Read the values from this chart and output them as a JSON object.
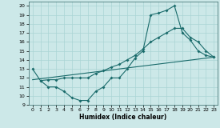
{
  "xlabel": "Humidex (Indice chaleur)",
  "bg_color": "#cce8e8",
  "line_color": "#1a6b6b",
  "grid_color": "#aad4d4",
  "xlim": [
    -0.5,
    23.5
  ],
  "ylim": [
    9,
    20.5
  ],
  "xticks": [
    0,
    1,
    2,
    3,
    4,
    5,
    6,
    7,
    8,
    9,
    10,
    11,
    12,
    13,
    14,
    15,
    16,
    17,
    18,
    19,
    20,
    21,
    22,
    23
  ],
  "yticks": [
    9,
    10,
    11,
    12,
    13,
    14,
    15,
    16,
    17,
    18,
    19,
    20
  ],
  "line1_x": [
    0,
    1,
    2,
    3,
    4,
    5,
    6,
    7,
    8,
    9,
    10,
    11,
    12,
    13,
    14,
    15,
    16,
    17,
    18,
    19,
    20,
    21,
    22,
    23
  ],
  "line1_y": [
    13.0,
    11.7,
    11.0,
    11.0,
    10.5,
    9.8,
    9.5,
    9.5,
    10.5,
    11.0,
    12.0,
    12.0,
    13.0,
    14.2,
    15.0,
    19.0,
    19.2,
    19.5,
    20.0,
    17.0,
    16.2,
    15.0,
    14.5,
    14.3
  ],
  "line2_x": [
    1,
    2,
    3,
    4,
    5,
    6,
    7,
    8,
    9,
    10,
    11,
    12,
    13,
    14,
    15,
    16,
    17,
    18,
    19,
    20,
    21,
    22,
    23
  ],
  "line2_y": [
    11.7,
    11.8,
    11.8,
    12.0,
    12.0,
    12.0,
    12.0,
    12.5,
    12.8,
    13.2,
    13.5,
    14.0,
    14.5,
    15.2,
    16.0,
    16.5,
    17.0,
    17.5,
    17.5,
    16.5,
    16.0,
    15.0,
    14.3
  ],
  "line3_x": [
    0,
    23
  ],
  "line3_y": [
    11.8,
    14.3
  ]
}
